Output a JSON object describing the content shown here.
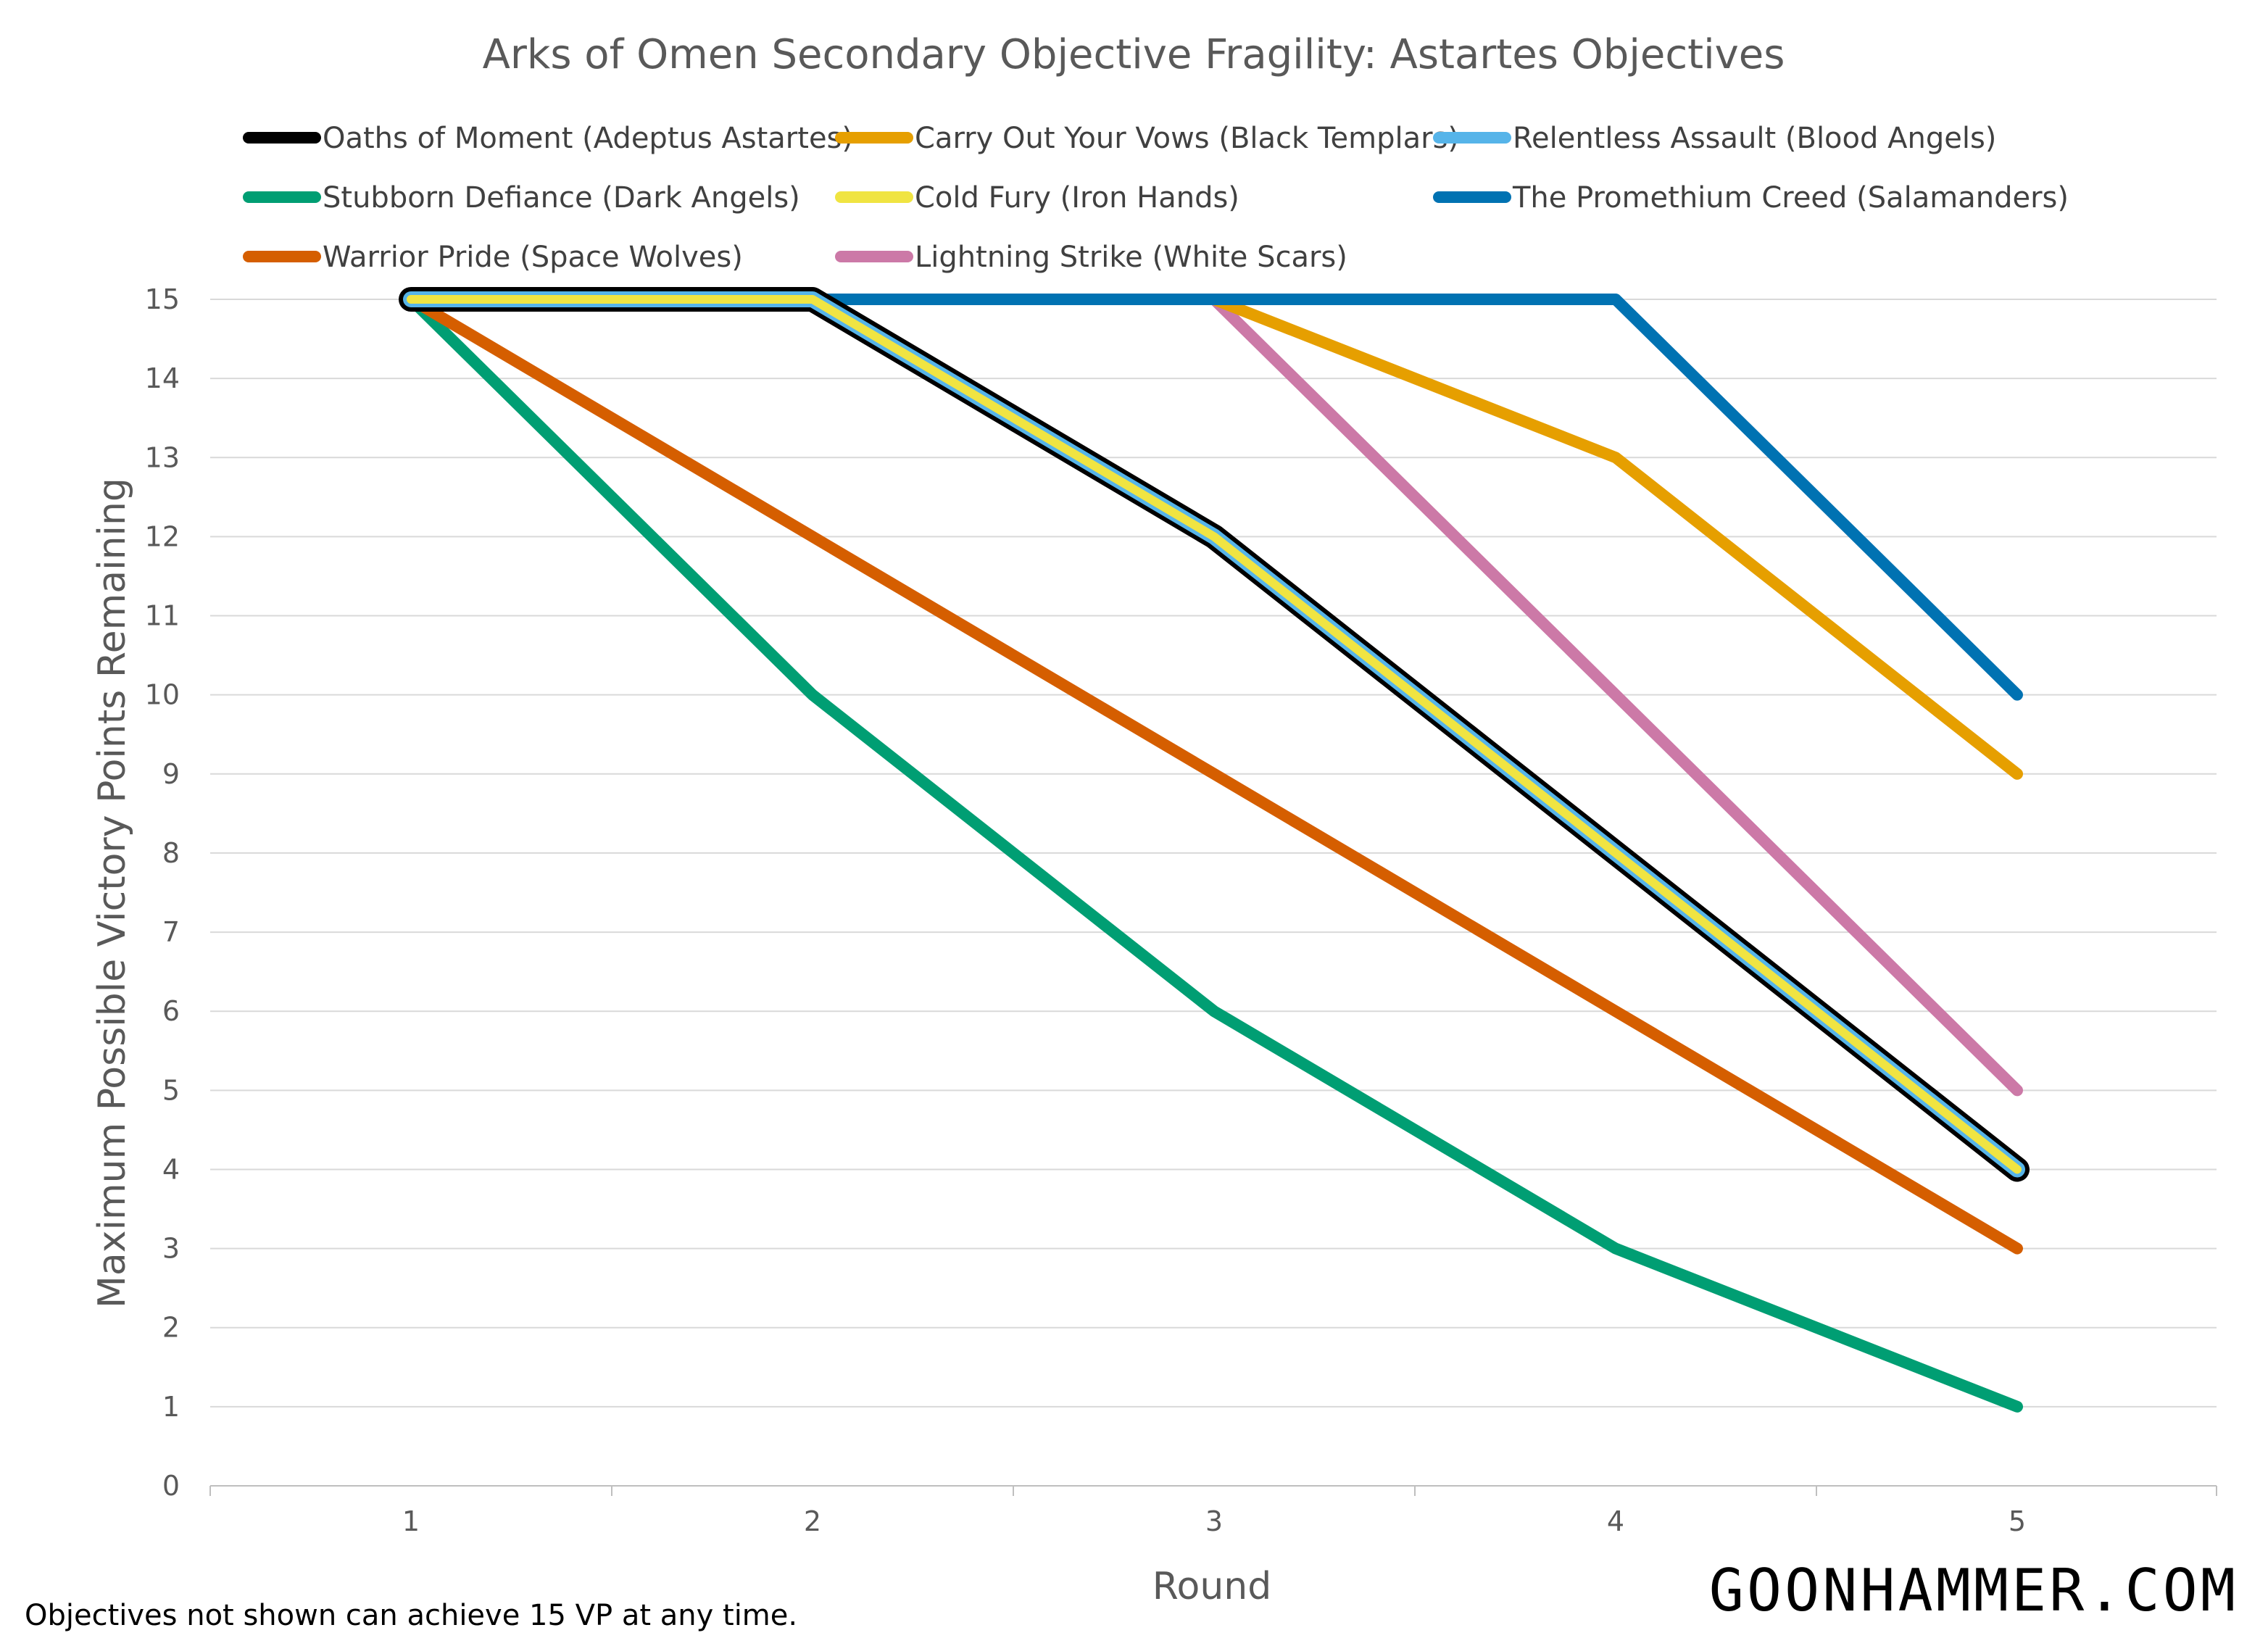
{
  "chart_data": {
    "type": "line",
    "title": "Arks of Omen Secondary Objective Fragility: Astartes Objectives",
    "xlabel": "Round",
    "ylabel": "Maximum Possible Victory Points Remaining",
    "x": [
      1,
      2,
      3,
      4,
      5
    ],
    "ylim": [
      0,
      15
    ],
    "y_ticks": [
      "0",
      "1",
      "2",
      "3",
      "4",
      "5",
      "6",
      "7",
      "8",
      "9",
      "10",
      "11",
      "12",
      "13",
      "14",
      "15"
    ],
    "x_ticks": [
      "1",
      "2",
      "3",
      "4",
      "5"
    ],
    "grid": "horizontal",
    "legend_position": "top",
    "series": [
      {
        "name": "Oaths of Moment (Adeptus Astartes)",
        "color": "#000000",
        "values": [
          15,
          15,
          12,
          8,
          4
        ]
      },
      {
        "name": "Carry Out Your Vows (Black Templars)",
        "color": "#E69F00",
        "values": [
          15,
          15,
          15,
          13,
          9
        ]
      },
      {
        "name": "Relentless Assault (Blood Angels)",
        "color": "#56B4E9",
        "values": [
          15,
          15,
          12,
          8,
          4
        ]
      },
      {
        "name": "Stubborn Defiance (Dark Angels)",
        "color": "#009E73",
        "values": [
          15,
          10,
          6,
          3,
          1
        ]
      },
      {
        "name": "Cold Fury (Iron Hands)",
        "color": "#F0E442",
        "values": [
          15,
          15,
          12,
          8,
          4
        ]
      },
      {
        "name": "The Promethium Creed (Salamanders)",
        "color": "#0072B2",
        "values": [
          15,
          15,
          15,
          15,
          10
        ]
      },
      {
        "name": "Warrior Pride (Space Wolves)",
        "color": "#D55E00",
        "values": [
          15,
          12,
          9,
          6,
          3
        ]
      },
      {
        "name": "Lightning Strike (White Scars)",
        "color": "#CC79A7",
        "values": [
          15,
          15,
          15,
          10,
          5
        ]
      }
    ]
  },
  "footnote": "Objectives not shown can achieve 15 VP at any time.",
  "brand": "GOONHAMMER.COM"
}
